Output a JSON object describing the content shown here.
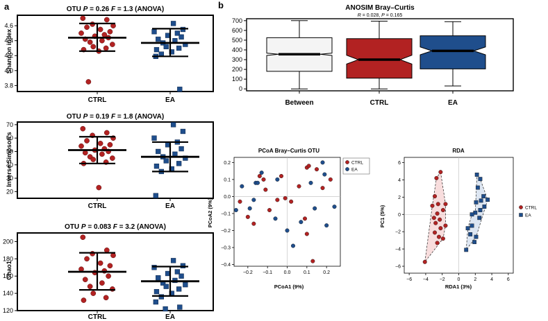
{
  "colors": {
    "ctrl": "#b22222",
    "ea": "#1f4e8c",
    "between": "#f4f4f4"
  },
  "panel_labels": {
    "a": "a",
    "b": "b"
  },
  "chart_data": [
    {
      "id": "shannon",
      "type": "scatter",
      "title": "OTU P = 0.26 F = 1.3 (ANOVA)",
      "title_parts": {
        "otu": "OTU",
        "p": "P",
        "pval": "= 0.26",
        "f": "F",
        "fval": "= 1.3 (ANOVA)"
      },
      "ylabel": "Shannon index",
      "ylim": [
        3.72,
        4.74
      ],
      "yticks": [
        "3.8",
        "4.0",
        "4.2",
        "4.4",
        "4.6"
      ],
      "ytick_values": [
        3.8,
        4.0,
        4.2,
        4.4,
        4.6
      ],
      "categories": [
        "CTRL",
        "EA"
      ],
      "summary": [
        {
          "group": "CTRL",
          "mean": 4.44,
          "lower": 4.26,
          "upper": 4.63
        },
        {
          "group": "EA",
          "mean": 4.37,
          "lower": 4.19,
          "upper": 4.56
        }
      ],
      "series": [
        {
          "name": "CTRL",
          "values": [
            4.7,
            4.68,
            4.62,
            4.6,
            4.58,
            4.55,
            4.52,
            4.5,
            4.48,
            4.46,
            4.44,
            4.42,
            4.4,
            4.38,
            4.35,
            4.32,
            4.3,
            4.28,
            4.26,
            3.85
          ]
        },
        {
          "name": "EA",
          "values": [
            4.63,
            4.55,
            4.52,
            4.5,
            4.47,
            4.45,
            4.42,
            4.4,
            4.37,
            4.35,
            4.32,
            4.3,
            4.28,
            4.25,
            4.22,
            4.19,
            3.75
          ]
        }
      ]
    },
    {
      "id": "invsimpson",
      "type": "scatter",
      "title": "OTU P = 0.19 F = 1.8 (ANOVA)",
      "title_parts": {
        "otu": "OTU",
        "p": "P",
        "pval": "= 0.19",
        "f": "F",
        "fval": "= 1.8 (ANOVA)"
      },
      "ylabel": "Inverse Simpson's",
      "ylim": [
        15,
        72
      ],
      "yticks": [
        "20",
        "30",
        "40",
        "50",
        "60",
        "70"
      ],
      "ytick_values": [
        20,
        30,
        40,
        50,
        60,
        70
      ],
      "categories": [
        "CTRL",
        "EA"
      ],
      "summary": [
        {
          "group": "CTRL",
          "mean": 51,
          "lower": 41,
          "upper": 61
        },
        {
          "group": "EA",
          "mean": 46,
          "lower": 35,
          "upper": 57
        }
      ],
      "series": [
        {
          "name": "CTRL",
          "values": [
            67,
            64,
            62,
            60,
            58,
            56,
            55,
            54,
            52,
            51,
            50,
            49,
            48,
            46,
            45,
            44,
            42,
            41,
            23
          ]
        },
        {
          "name": "EA",
          "values": [
            70,
            65,
            60,
            57,
            55,
            52,
            50,
            48,
            46,
            45,
            43,
            41,
            39,
            37,
            35,
            17
          ]
        }
      ]
    },
    {
      "id": "chao1",
      "type": "scatter",
      "title": "OTU P = 0.083 F = 3.2 (ANOVA)",
      "title_parts": {
        "otu": "OTU",
        "p": "P",
        "pval": "= 0.083",
        "f": "F",
        "fval": "= 3.2 (ANOVA)"
      },
      "ylabel": "Chao1",
      "ylim": [
        120,
        210
      ],
      "yticks": [
        "120",
        "140",
        "160",
        "180",
        "200"
      ],
      "ytick_values": [
        120,
        140,
        160,
        180,
        200
      ],
      "categories": [
        "CTRL",
        "EA"
      ],
      "summary": [
        {
          "group": "CTRL",
          "mean": 165,
          "lower": 144,
          "upper": 187
        },
        {
          "group": "EA",
          "mean": 154,
          "lower": 137,
          "upper": 171
        }
      ],
      "series": [
        {
          "name": "CTRL",
          "values": [
            205,
            190,
            186,
            184,
            180,
            175,
            172,
            168,
            166,
            164,
            160,
            156,
            152,
            148,
            145,
            140,
            135,
            132
          ]
        },
        {
          "name": "EA",
          "values": [
            178,
            172,
            170,
            165,
            163,
            160,
            158,
            155,
            152,
            150,
            148,
            145,
            142,
            140,
            136,
            130,
            124,
            122
          ]
        }
      ]
    },
    {
      "id": "anosim",
      "type": "box",
      "title": "ANOSIM Bray–Curtis",
      "subtitle": "R = 0.028, P = 0.165",
      "subtitle_parts": {
        "r": "R",
        "rval": " = 0.028, ",
        "p": "P",
        "pval": " = 0.165"
      },
      "ylim": [
        -20,
        720
      ],
      "yticks": [
        "0",
        "100",
        "200",
        "300",
        "400",
        "500",
        "600",
        "700"
      ],
      "ytick_values": [
        0,
        100,
        200,
        300,
        400,
        500,
        600,
        700
      ],
      "categories": [
        "Between",
        "CTRL",
        "EA"
      ],
      "boxes": [
        {
          "name": "Between",
          "min": 0,
          "q1": 180,
          "median": 355,
          "q3": 525,
          "max": 700,
          "notch": 12
        },
        {
          "name": "CTRL",
          "min": 0,
          "q1": 110,
          "median": 300,
          "q3": 515,
          "max": 695,
          "notch": 45
        },
        {
          "name": "EA",
          "min": 30,
          "q1": 205,
          "median": 390,
          "q3": 545,
          "max": 690,
          "notch": 40
        }
      ]
    },
    {
      "id": "pcoa",
      "type": "scatter",
      "title": "PCoA Bray–Curtis OTU",
      "xlabel": "PCoA1 (9%)",
      "ylabel": "PCoA2 (9%)",
      "xlim": [
        -0.27,
        0.27
      ],
      "ylim": [
        -0.41,
        0.23
      ],
      "xticks": [
        "−0.2",
        "−0.1",
        "0.0",
        "0.1",
        "0.2"
      ],
      "xtick_values": [
        -0.2,
        -0.1,
        0.0,
        0.1,
        0.2
      ],
      "yticks": [
        "0.2",
        "0.1",
        "0.0",
        "−0.1",
        "−0.2",
        "−0.3",
        "−0.4"
      ],
      "ytick_values": [
        0.2,
        0.1,
        0.0,
        -0.1,
        -0.2,
        -0.3,
        -0.4
      ],
      "legend": [
        "CTRL",
        "EA"
      ],
      "legend_position": "top-right",
      "series": [
        {
          "name": "CTRL",
          "points": [
            [
              -0.24,
              -0.03
            ],
            [
              -0.2,
              -0.12
            ],
            [
              -0.17,
              -0.16
            ],
            [
              -0.14,
              0.12
            ],
            [
              -0.12,
              0.1
            ],
            [
              -0.11,
              0.04
            ],
            [
              -0.09,
              -0.08
            ],
            [
              -0.05,
              -0.02
            ],
            [
              -0.03,
              0.12
            ],
            [
              -0.01,
              -0.01
            ],
            [
              0.02,
              -0.03
            ],
            [
              0.06,
              0.06
            ],
            [
              0.09,
              -0.13
            ],
            [
              0.1,
              -0.22
            ],
            [
              0.1,
              0.17
            ],
            [
              0.11,
              0.18
            ],
            [
              0.13,
              -0.38
            ],
            [
              0.15,
              0.16
            ],
            [
              0.18,
              0.05
            ],
            [
              0.22,
              0.1
            ]
          ]
        },
        {
          "name": "EA",
          "points": [
            [
              -0.26,
              -0.08
            ],
            [
              -0.23,
              0.06
            ],
            [
              -0.19,
              -0.07
            ],
            [
              -0.17,
              -0.02
            ],
            [
              -0.16,
              0.08
            ],
            [
              -0.15,
              0.08
            ],
            [
              -0.13,
              0.14
            ],
            [
              -0.06,
              -0.13
            ],
            [
              -0.05,
              0.1
            ],
            [
              0.0,
              -0.2
            ],
            [
              0.03,
              -0.29
            ],
            [
              0.07,
              -0.15
            ],
            [
              0.12,
              0.08
            ],
            [
              0.14,
              -0.07
            ],
            [
              0.18,
              0.2
            ],
            [
              0.19,
              0.13
            ],
            [
              0.2,
              -0.17
            ],
            [
              0.24,
              -0.06
            ]
          ]
        }
      ]
    },
    {
      "id": "rda",
      "type": "scatter",
      "title": "RDA",
      "xlabel": "RDA1 (3%)",
      "ylabel": "PC1 (5%)",
      "xlim": [
        -6.6,
        6.6
      ],
      "ylim": [
        -6.8,
        6.6
      ],
      "xticks": [
        "−6",
        "−4",
        "−2",
        "0",
        "2",
        "4",
        "6"
      ],
      "xtick_values": [
        -6,
        -4,
        -2,
        0,
        2,
        4,
        6
      ],
      "yticks": [
        "6",
        "4",
        "2",
        "0",
        "−2",
        "−4",
        "−6"
      ],
      "ytick_values": [
        6,
        4,
        2,
        0,
        -2,
        -4,
        -6
      ],
      "legend": [
        "CTRL",
        "EA"
      ],
      "legend_position": "right",
      "series": [
        {
          "name": "CTRL",
          "points": [
            [
              -2.2,
              4.9
            ],
            [
              -2.7,
              4.2
            ],
            [
              -2.9,
              2.1
            ],
            [
              -3.2,
              1.0
            ],
            [
              -2.5,
              1.2
            ],
            [
              -1.9,
              0.5
            ],
            [
              -2.6,
              0.1
            ],
            [
              -3.0,
              -0.4
            ],
            [
              -2.3,
              -0.6
            ],
            [
              -2.8,
              -1.0
            ],
            [
              -1.6,
              -1.3
            ],
            [
              -2.2,
              -1.6
            ],
            [
              -2.9,
              -2.1
            ],
            [
              -2.4,
              -2.6
            ],
            [
              -1.9,
              -2.8
            ],
            [
              -2.6,
              -3.3
            ],
            [
              -4.1,
              -5.5
            ],
            [
              -1.6,
              1.2
            ]
          ]
        },
        {
          "name": "EA",
          "points": [
            [
              2.2,
              4.6
            ],
            [
              2.6,
              4.1
            ],
            [
              2.3,
              3.1
            ],
            [
              3.0,
              2.1
            ],
            [
              3.5,
              1.7
            ],
            [
              2.7,
              1.6
            ],
            [
              2.1,
              1.4
            ],
            [
              3.1,
              0.9
            ],
            [
              2.6,
              0.5
            ],
            [
              2.0,
              0.2
            ],
            [
              1.6,
              0.0
            ],
            [
              2.5,
              -0.4
            ],
            [
              1.6,
              -1.3
            ],
            [
              1.1,
              -1.6
            ],
            [
              1.4,
              -2.3
            ],
            [
              2.1,
              -2.6
            ],
            [
              0.9,
              -4.1
            ],
            [
              1.9,
              -3.2
            ]
          ]
        }
      ],
      "hulls": [
        {
          "name": "CTRL",
          "points": [
            [
              -2.2,
              4.9
            ],
            [
              -1.6,
              1.2
            ],
            [
              -1.6,
              -1.3
            ],
            [
              -1.9,
              -2.8
            ],
            [
              -4.1,
              -5.5
            ],
            [
              -3.2,
              1.0
            ],
            [
              -2.7,
              4.2
            ]
          ]
        },
        {
          "name": "EA",
          "points": [
            [
              2.2,
              4.6
            ],
            [
              2.6,
              4.1
            ],
            [
              3.5,
              1.7
            ],
            [
              2.1,
              -2.6
            ],
            [
              0.9,
              -4.1
            ],
            [
              1.1,
              -1.6
            ],
            [
              1.6,
              0.0
            ],
            [
              2.0,
              0.2
            ]
          ]
        }
      ]
    }
  ]
}
